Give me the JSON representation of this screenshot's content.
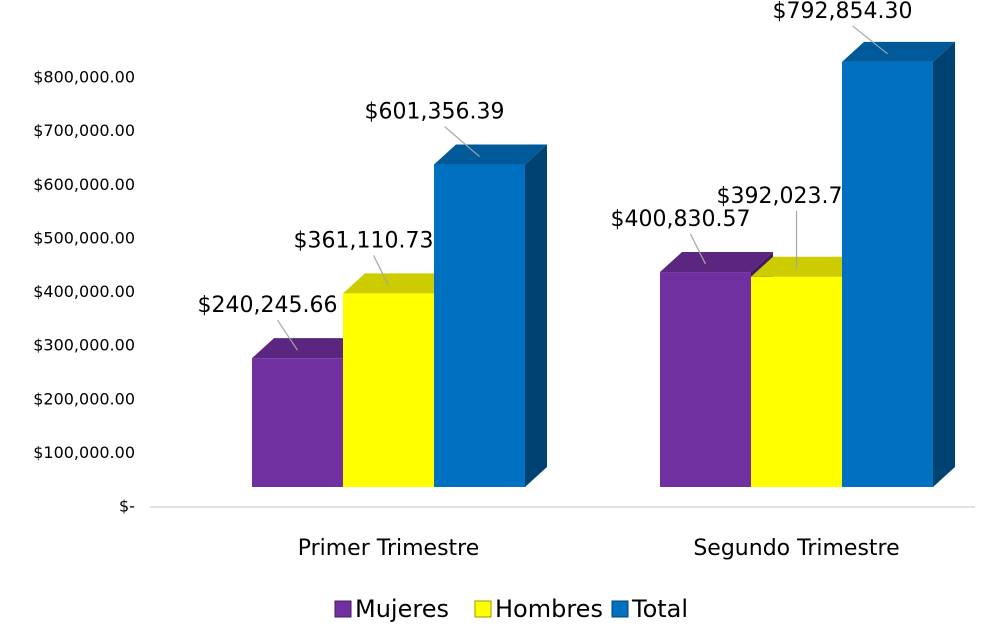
{
  "chart_data": {
    "type": "bar",
    "categories": [
      "Primer Trimestre",
      "Segundo Trimestre"
    ],
    "series": [
      {
        "name": "Mujeres",
        "color": "#7030a0",
        "values": [
          240245.66,
          400830.57
        ],
        "value_labels": [
          "$240,245.66",
          "$400,830.57"
        ]
      },
      {
        "name": "Hombres",
        "color": "#ffff00",
        "values": [
          361110.73,
          392023.73
        ],
        "value_labels": [
          "$361,110.73",
          "$392,023.73"
        ]
      },
      {
        "name": "Total",
        "color": "#0070c0",
        "values": [
          601356.39,
          792854.3
        ],
        "value_labels": [
          "$601,356.39",
          "$792,854.30"
        ]
      }
    ],
    "ylim": [
      0,
      800000
    ],
    "yticks": [
      {
        "value": 0,
        "label": "$-"
      },
      {
        "value": 100000,
        "label": "$100,000.00"
      },
      {
        "value": 200000,
        "label": "$200,000.00"
      },
      {
        "value": 300000,
        "label": "$300,000.00"
      },
      {
        "value": 400000,
        "label": "$400,000.00"
      },
      {
        "value": 500000,
        "label": "$500,000.00"
      },
      {
        "value": 600000,
        "label": "$600,000.00"
      },
      {
        "value": 700000,
        "label": "$700,000.00"
      },
      {
        "value": 800000,
        "label": "$800,000.00"
      }
    ],
    "legend": "bottom"
  }
}
